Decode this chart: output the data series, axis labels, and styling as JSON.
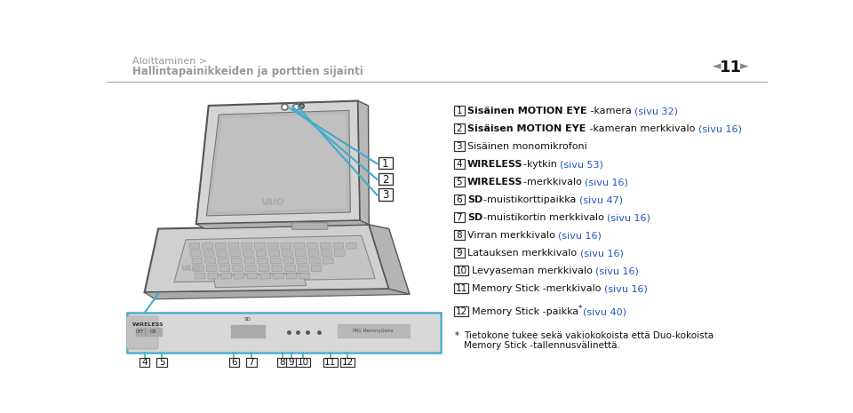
{
  "bg_color": "#ffffff",
  "header_line_color": "#555555",
  "breadcrumb": "Aloittaminen >",
  "title": "Hallintapainikkeiden ja porttien sijainti",
  "page_num": "11",
  "header_text_color": "#999999",
  "link_color": "#2255bb",
  "text_color": "#111111",
  "items": [
    {
      "num": "1",
      "bold": "Sisäinen MOTION EYE",
      "rest": " -kamera ",
      "link": "(sivu 32)"
    },
    {
      "num": "2",
      "bold": "Sisäisen MOTION EYE",
      "rest": " -kameran merkkivalo ",
      "link": "(sivu 16)"
    },
    {
      "num": "3",
      "bold": "",
      "rest": "Sisäinen monomikrofoni",
      "link": ""
    },
    {
      "num": "4",
      "bold": "WIRELESS",
      "rest": "-kytkin ",
      "link": "(sivu 53)"
    },
    {
      "num": "5",
      "bold": "WIRELESS",
      "rest": "-merkkivalo ",
      "link": "(sivu 16)"
    },
    {
      "num": "6",
      "bold": "SD",
      "rest": "-muistikorttipaikka ",
      "link": "(sivu 47)"
    },
    {
      "num": "7",
      "bold": "SD",
      "rest": "-muistikortin merkkivalo ",
      "link": "(sivu 16)"
    },
    {
      "num": "8",
      "bold": "",
      "rest": "Virran merkkivalo ",
      "link": "(sivu 16)"
    },
    {
      "num": "9",
      "bold": "",
      "rest": "Latauksen merkkivalo ",
      "link": "(sivu 16)"
    },
    {
      "num": "10",
      "bold": "",
      "rest": "Levyaseman merkkivalo ",
      "link": "(sivu 16)"
    },
    {
      "num": "11",
      "bold": "",
      "rest": "Memory Stick -merkkivalo ",
      "link": "(sivu 16)"
    },
    {
      "num": "12",
      "bold": "",
      "rest": "Memory Stick -paikka",
      "link": "(sivu 40)",
      "superstar": true
    }
  ],
  "footnote_star": "*",
  "footnote_text1": "Tietokone tukee sekä vakiokokoista että Duo-kokoista",
  "footnote_text2": "Memory Stick -tallennusvälinettä."
}
